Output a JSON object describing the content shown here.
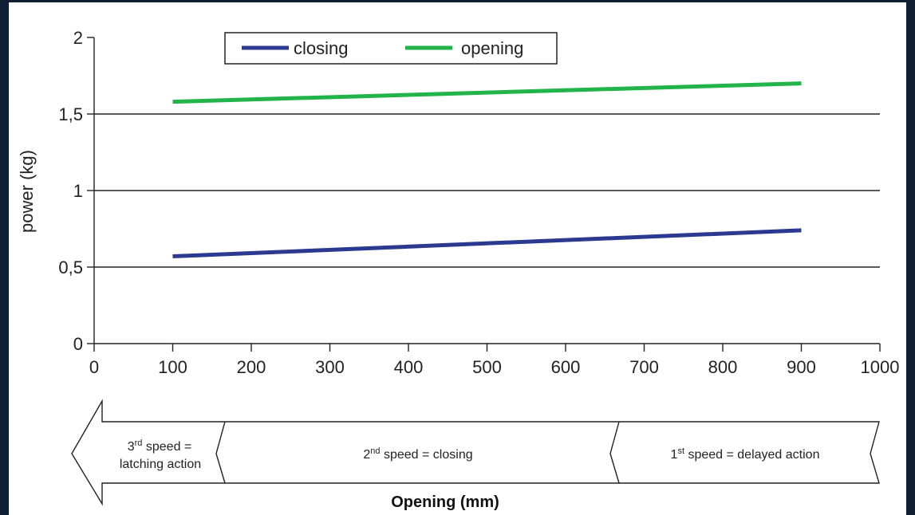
{
  "chart_data": {
    "type": "line",
    "xlabel": "Opening (mm)",
    "ylabel": "power (kg)",
    "xlim": [
      0,
      1000
    ],
    "ylim": [
      0,
      2
    ],
    "x_ticks": [
      "0",
      "100",
      "200",
      "300",
      "400",
      "500",
      "600",
      "700",
      "800",
      "900",
      "1000"
    ],
    "y_ticks": [
      "0",
      "0,5",
      "1",
      "1,5",
      "2"
    ],
    "grid": "horizontal",
    "legend_position": "top-center",
    "series": [
      {
        "name": "closing",
        "color": "#2b3990",
        "x": [
          100,
          900
        ],
        "y": [
          0.57,
          0.74
        ]
      },
      {
        "name": "opening",
        "color": "#22b34a",
        "x": [
          100,
          900
        ],
        "y": [
          1.58,
          1.7
        ]
      }
    ]
  },
  "speed_zones": {
    "zone3": {
      "ordinal": "3",
      "suffix": "rd",
      "line1": " speed =",
      "line2": "latching action"
    },
    "zone2": {
      "ordinal": "2",
      "suffix": "nd",
      "line1": " speed = closing"
    },
    "zone1": {
      "ordinal": "1",
      "suffix": "st",
      "line1": " speed = delayed action"
    }
  }
}
